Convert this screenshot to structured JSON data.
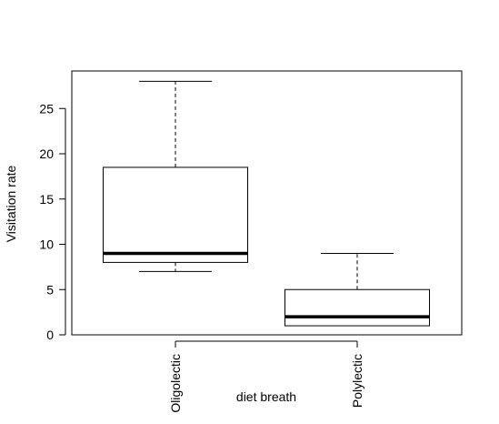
{
  "chart_data": {
    "type": "boxplot",
    "xlabel": "diet breath",
    "ylabel": "Visitation rate",
    "ylim": [
      0,
      28.6
    ],
    "yticks": [
      0,
      5,
      10,
      15,
      20,
      25
    ],
    "categories": [
      "Oligolectic",
      "Polylectic"
    ],
    "boxes": [
      {
        "category": "Oligolectic",
        "whisker_low": 7,
        "q1": 8,
        "median": 9,
        "q3": 18.5,
        "whisker_high": 28
      },
      {
        "category": "Polylectic",
        "whisker_low": 1,
        "q1": 1,
        "median": 2,
        "q3": 5,
        "whisker_high": 9
      }
    ],
    "grid": false,
    "legend": "none"
  }
}
